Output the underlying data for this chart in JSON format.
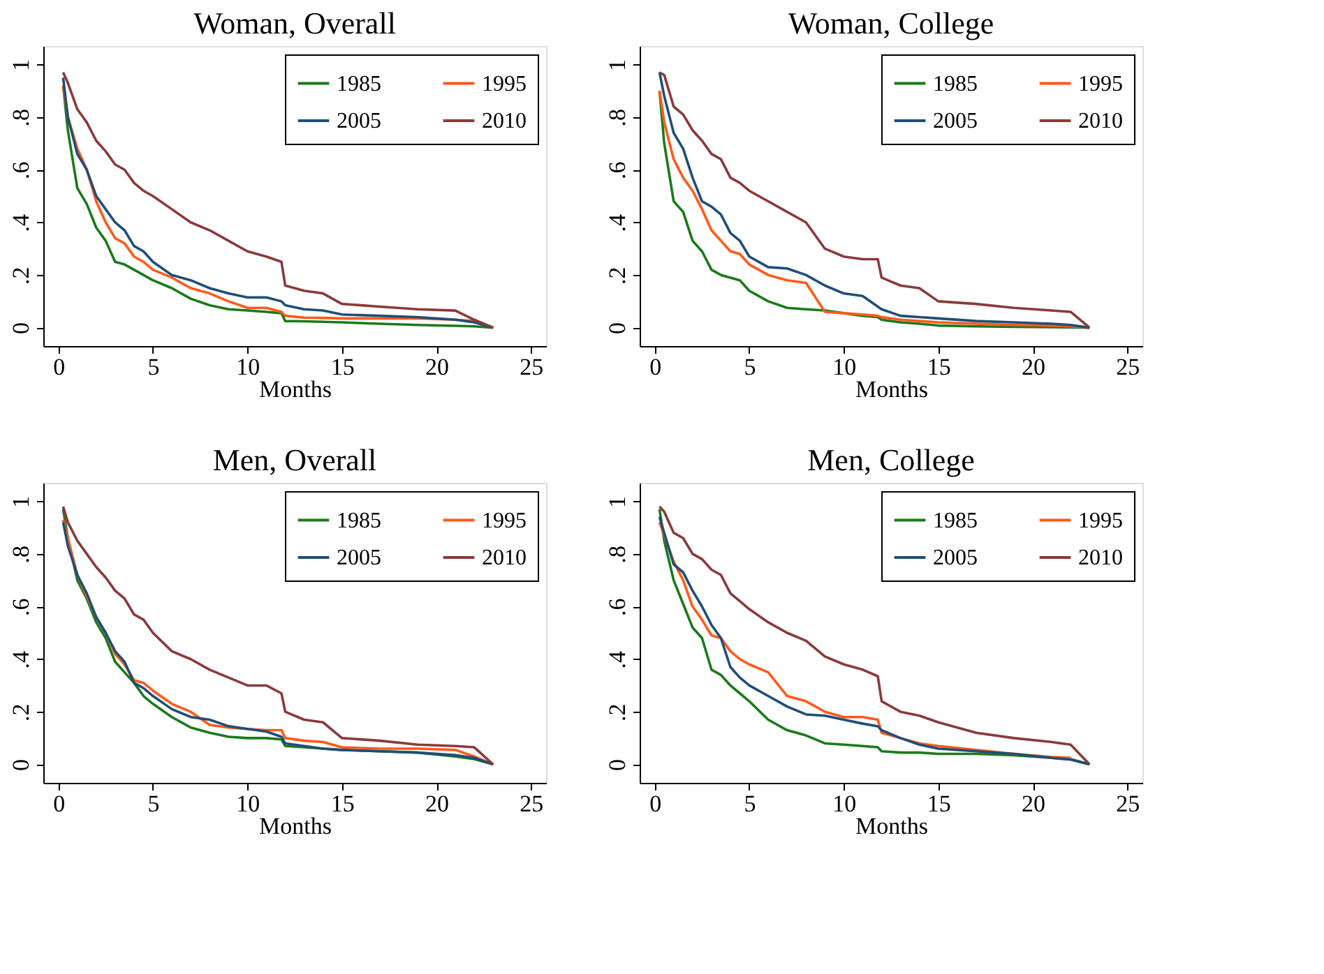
{
  "chart_data": [
    {
      "type": "line",
      "title": "Woman, Overall",
      "xlabel": "Months",
      "xlim": [
        -0.8,
        25.8
      ],
      "xticks": [
        0,
        5,
        10,
        15,
        20,
        25
      ],
      "ylim": [
        -0.07,
        1.07
      ],
      "yticks": [
        0,
        {
          "value": 0.2,
          "label": ".2"
        },
        {
          "value": 0.4,
          "label": ".4"
        },
        {
          "value": 0.6,
          "label": ".6"
        },
        {
          "value": 0.8,
          "label": ".8"
        },
        1
      ],
      "grid": false,
      "legend": "top right",
      "x": [
        0.25,
        0.5,
        1,
        1.5,
        2,
        2.5,
        3,
        3.5,
        4,
        4.5,
        5,
        6,
        7,
        8,
        9,
        10,
        11,
        11.8,
        12,
        13,
        14,
        15,
        17,
        19,
        21,
        22,
        23
      ],
      "series": [
        {
          "name": "1985",
          "color": "#1a7a1a",
          "values": [
            0.92,
            0.75,
            0.53,
            0.47,
            0.38,
            0.33,
            0.25,
            0.24,
            0.22,
            0.2,
            0.18,
            0.15,
            0.11,
            0.085,
            0.07,
            0.065,
            0.06,
            0.055,
            0.025,
            0.024,
            0.022,
            0.02,
            0.015,
            0.01,
            0.007,
            0.005,
            0
          ]
        },
        {
          "name": "1995",
          "color": "#ff5a1a",
          "values": [
            0.92,
            0.8,
            0.68,
            0.6,
            0.48,
            0.4,
            0.34,
            0.32,
            0.27,
            0.25,
            0.22,
            0.19,
            0.15,
            0.13,
            0.1,
            0.075,
            0.075,
            0.06,
            0.045,
            0.038,
            0.037,
            0.035,
            0.035,
            0.035,
            0.03,
            0.025,
            0
          ]
        },
        {
          "name": "2005",
          "color": "#1f4e79",
          "values": [
            0.95,
            0.8,
            0.66,
            0.6,
            0.5,
            0.45,
            0.4,
            0.37,
            0.31,
            0.29,
            0.25,
            0.2,
            0.18,
            0.15,
            0.13,
            0.115,
            0.115,
            0.1,
            0.085,
            0.07,
            0.065,
            0.05,
            0.045,
            0.04,
            0.03,
            0.02,
            0
          ]
        },
        {
          "name": "2010",
          "color": "#8b3a3a",
          "values": [
            0.97,
            0.93,
            0.83,
            0.78,
            0.71,
            0.67,
            0.62,
            0.6,
            0.55,
            0.52,
            0.5,
            0.45,
            0.4,
            0.37,
            0.33,
            0.29,
            0.27,
            0.25,
            0.16,
            0.14,
            0.13,
            0.09,
            0.08,
            0.07,
            0.065,
            0.03,
            0
          ]
        }
      ]
    },
    {
      "type": "line",
      "title": "Woman, College",
      "xlabel": "Months",
      "xlim": [
        -0.8,
        25.8
      ],
      "xticks": [
        0,
        5,
        10,
        15,
        20,
        25
      ],
      "ylim": [
        -0.07,
        1.07
      ],
      "yticks": [
        0,
        {
          "value": 0.2,
          "label": ".2"
        },
        {
          "value": 0.4,
          "label": ".4"
        },
        {
          "value": 0.6,
          "label": ".6"
        },
        {
          "value": 0.8,
          "label": ".8"
        },
        1
      ],
      "grid": false,
      "legend": "top right",
      "x": [
        0.25,
        0.5,
        1,
        1.5,
        2,
        2.5,
        3,
        3.5,
        4,
        4.5,
        5,
        6,
        7,
        8,
        9,
        10,
        11,
        11.8,
        12,
        13,
        14,
        15,
        17,
        19,
        21,
        22,
        23
      ],
      "series": [
        {
          "name": "1985",
          "color": "#1a7a1a",
          "values": [
            0.9,
            0.7,
            0.48,
            0.44,
            0.33,
            0.29,
            0.22,
            0.2,
            0.19,
            0.18,
            0.14,
            0.1,
            0.075,
            0.07,
            0.065,
            0.055,
            0.045,
            0.04,
            0.03,
            0.02,
            0.015,
            0.008,
            0.005,
            0.003,
            0.002,
            0.001,
            0
          ]
        },
        {
          "name": "1995",
          "color": "#ff5a1a",
          "values": [
            0.9,
            0.78,
            0.64,
            0.57,
            0.52,
            0.45,
            0.37,
            0.33,
            0.29,
            0.28,
            0.24,
            0.2,
            0.18,
            0.17,
            0.06,
            0.055,
            0.05,
            0.045,
            0.04,
            0.03,
            0.025,
            0.02,
            0.015,
            0.01,
            0.008,
            0.005,
            0
          ]
        },
        {
          "name": "2005",
          "color": "#1f4e79",
          "values": [
            0.97,
            0.88,
            0.74,
            0.68,
            0.57,
            0.48,
            0.46,
            0.43,
            0.36,
            0.33,
            0.27,
            0.23,
            0.225,
            0.2,
            0.16,
            0.13,
            0.12,
            0.08,
            0.07,
            0.045,
            0.04,
            0.035,
            0.025,
            0.02,
            0.015,
            0.01,
            0
          ]
        },
        {
          "name": "2010",
          "color": "#8b3a3a",
          "values": [
            0.97,
            0.96,
            0.84,
            0.81,
            0.75,
            0.71,
            0.66,
            0.64,
            0.57,
            0.55,
            0.52,
            0.48,
            0.44,
            0.4,
            0.3,
            0.27,
            0.26,
            0.26,
            0.19,
            0.16,
            0.15,
            0.1,
            0.09,
            0.075,
            0.065,
            0.06,
            0
          ]
        }
      ]
    },
    {
      "type": "line",
      "title": "Men, Overall",
      "xlabel": "Months",
      "xlim": [
        -0.8,
        25.8
      ],
      "xticks": [
        0,
        5,
        10,
        15,
        20,
        25
      ],
      "ylim": [
        -0.07,
        1.07
      ],
      "yticks": [
        0,
        {
          "value": 0.2,
          "label": ".2"
        },
        {
          "value": 0.4,
          "label": ".4"
        },
        {
          "value": 0.6,
          "label": ".6"
        },
        {
          "value": 0.8,
          "label": ".8"
        },
        1
      ],
      "grid": false,
      "legend": "top right",
      "x": [
        0.25,
        0.5,
        1,
        1.5,
        2,
        2.5,
        3,
        3.5,
        4,
        4.5,
        5,
        6,
        7,
        8,
        9,
        10,
        11,
        11.8,
        12,
        13,
        14,
        15,
        17,
        19,
        21,
        22,
        23
      ],
      "series": [
        {
          "name": "1985",
          "color": "#1a7a1a",
          "values": [
            0.97,
            0.86,
            0.7,
            0.63,
            0.54,
            0.48,
            0.39,
            0.35,
            0.31,
            0.26,
            0.23,
            0.18,
            0.14,
            0.12,
            0.105,
            0.1,
            0.1,
            0.095,
            0.07,
            0.065,
            0.06,
            0.055,
            0.05,
            0.045,
            0.03,
            0.02,
            0
          ]
        },
        {
          "name": "1995",
          "color": "#ff5a1a",
          "values": [
            0.93,
            0.86,
            0.72,
            0.64,
            0.56,
            0.5,
            0.42,
            0.38,
            0.32,
            0.31,
            0.28,
            0.23,
            0.2,
            0.15,
            0.14,
            0.135,
            0.13,
            0.13,
            0.1,
            0.09,
            0.085,
            0.065,
            0.06,
            0.06,
            0.055,
            0.03,
            0
          ]
        },
        {
          "name": "2005",
          "color": "#1f4e79",
          "values": [
            0.92,
            0.83,
            0.72,
            0.65,
            0.56,
            0.5,
            0.43,
            0.39,
            0.31,
            0.29,
            0.26,
            0.21,
            0.18,
            0.17,
            0.145,
            0.135,
            0.125,
            0.105,
            0.08,
            0.07,
            0.06,
            0.055,
            0.05,
            0.045,
            0.035,
            0.025,
            0
          ]
        },
        {
          "name": "2010",
          "color": "#8b3a3a",
          "values": [
            0.98,
            0.92,
            0.85,
            0.8,
            0.75,
            0.71,
            0.66,
            0.63,
            0.57,
            0.55,
            0.5,
            0.43,
            0.4,
            0.36,
            0.33,
            0.3,
            0.3,
            0.27,
            0.2,
            0.17,
            0.16,
            0.1,
            0.09,
            0.075,
            0.07,
            0.065,
            0
          ]
        }
      ]
    },
    {
      "type": "line",
      "title": "Men, College",
      "xlabel": "Months",
      "xlim": [
        -0.8,
        25.8
      ],
      "xticks": [
        0,
        5,
        10,
        15,
        20,
        25
      ],
      "ylim": [
        -0.07,
        1.07
      ],
      "yticks": [
        0,
        {
          "value": 0.2,
          "label": ".2"
        },
        {
          "value": 0.4,
          "label": ".4"
        },
        {
          "value": 0.6,
          "label": ".6"
        },
        {
          "value": 0.8,
          "label": ".8"
        },
        1
      ],
      "grid": false,
      "legend": "top right",
      "x": [
        0.25,
        0.5,
        1,
        1.5,
        2,
        2.5,
        3,
        3.5,
        4,
        4.5,
        5,
        6,
        7,
        8,
        9,
        10,
        11,
        11.8,
        12,
        13,
        14,
        15,
        17,
        19,
        21,
        22,
        23
      ],
      "series": [
        {
          "name": "1985",
          "color": "#1a7a1a",
          "values": [
            0.97,
            0.85,
            0.7,
            0.61,
            0.52,
            0.48,
            0.36,
            0.34,
            0.3,
            0.27,
            0.24,
            0.17,
            0.13,
            0.11,
            0.08,
            0.075,
            0.07,
            0.065,
            0.05,
            0.045,
            0.045,
            0.04,
            0.04,
            0.035,
            0.025,
            0.02,
            0
          ]
        },
        {
          "name": "1995",
          "color": "#ff5a1a",
          "values": [
            0.92,
            0.87,
            0.77,
            0.7,
            0.6,
            0.55,
            0.49,
            0.48,
            0.43,
            0.4,
            0.38,
            0.35,
            0.26,
            0.24,
            0.2,
            0.18,
            0.18,
            0.17,
            0.12,
            0.1,
            0.08,
            0.07,
            0.055,
            0.04,
            0.028,
            0.025,
            null
          ]
        },
        {
          "name": "2005",
          "color": "#1f4e79",
          "values": [
            0.94,
            0.88,
            0.76,
            0.73,
            0.66,
            0.6,
            0.53,
            0.48,
            0.37,
            0.33,
            0.3,
            0.26,
            0.22,
            0.19,
            0.185,
            0.17,
            0.155,
            0.145,
            0.13,
            0.1,
            0.075,
            0.06,
            0.05,
            0.04,
            0.025,
            0.018,
            0
          ]
        },
        {
          "name": "2010",
          "color": "#8b3a3a",
          "values": [
            0.98,
            0.96,
            0.88,
            0.86,
            0.8,
            0.78,
            0.74,
            0.72,
            0.65,
            0.62,
            0.59,
            0.54,
            0.5,
            0.47,
            0.41,
            0.38,
            0.36,
            0.335,
            0.24,
            0.2,
            0.185,
            0.16,
            0.12,
            0.1,
            0.085,
            0.075,
            0
          ]
        }
      ]
    }
  ]
}
